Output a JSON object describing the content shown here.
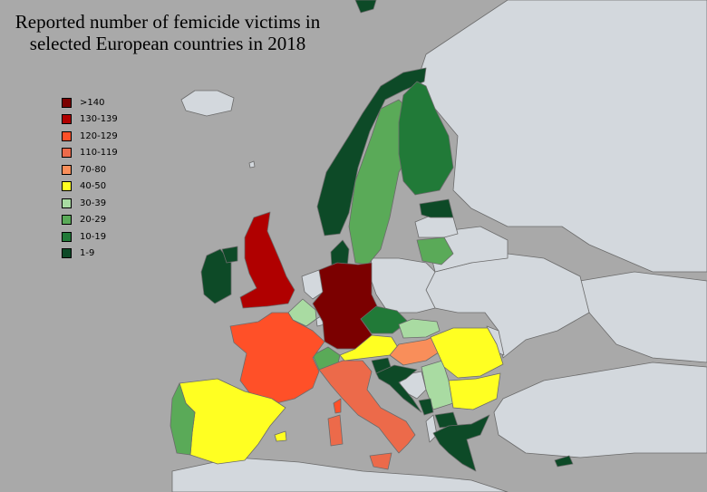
{
  "title": {
    "line1": "Reported number of femicide victims in",
    "line2": "selected European countries in 2018"
  },
  "colors": {
    "sea": "#a9a9a9",
    "land_no_data": "#d3d8dd",
    "border": "#6b6b6b"
  },
  "legend": [
    {
      "label": ">140",
      "color": "#7b0000"
    },
    {
      "label": "130-139",
      "color": "#b00000"
    },
    {
      "label": "120-129",
      "color": "#ff5028"
    },
    {
      "label": "110-119",
      "color": "#ec6a4a"
    },
    {
      "label": "70-80",
      "color": "#f98e5a"
    },
    {
      "label": "40-50",
      "color": "#ffff22"
    },
    {
      "label": "30-39",
      "color": "#a9dba2"
    },
    {
      "label": "20-29",
      "color": "#5aaa58"
    },
    {
      "label": "10-19",
      "color": "#217a38"
    },
    {
      "label": "1-9",
      "color": "#0d4a27"
    }
  ],
  "countries": [
    {
      "name": "Germany",
      "category": ">140"
    },
    {
      "name": "United Kingdom",
      "category": "130-139"
    },
    {
      "name": "France",
      "category": "120-129"
    },
    {
      "name": "Italy",
      "category": "110-119"
    },
    {
      "name": "Hungary",
      "category": "70-80"
    },
    {
      "name": "Spain",
      "category": "40-50"
    },
    {
      "name": "Romania",
      "category": "40-50"
    },
    {
      "name": "Austria",
      "category": "40-50"
    },
    {
      "name": "Bulgaria",
      "category": "40-50"
    },
    {
      "name": "Sweden",
      "category": "20-29"
    },
    {
      "name": "Portugal",
      "category": "20-29"
    },
    {
      "name": "Switzerland",
      "category": "20-29"
    },
    {
      "name": "Lithuania",
      "category": "20-29"
    },
    {
      "name": "Slovakia",
      "category": "30-39"
    },
    {
      "name": "Belgium",
      "category": "30-39"
    },
    {
      "name": "Serbia",
      "category": "30-39"
    },
    {
      "name": "Finland",
      "category": "10-19"
    },
    {
      "name": "Czechia",
      "category": "10-19"
    },
    {
      "name": "Norway",
      "category": "1-9"
    },
    {
      "name": "Ireland",
      "category": "1-9"
    },
    {
      "name": "Denmark",
      "category": "1-9"
    },
    {
      "name": "Estonia",
      "category": "1-9"
    },
    {
      "name": "Slovenia",
      "category": "1-9"
    },
    {
      "name": "Croatia",
      "category": "1-9"
    },
    {
      "name": "Greece",
      "category": "1-9"
    },
    {
      "name": "North Macedonia",
      "category": "1-9"
    },
    {
      "name": "Montenegro",
      "category": "1-9"
    },
    {
      "name": "Northern Ireland",
      "category": "1-9"
    },
    {
      "name": "Cyprus",
      "category": "1-9"
    },
    {
      "name": "Svalbard",
      "category": "1-9"
    },
    {
      "name": "Poland",
      "category": "no data"
    },
    {
      "name": "Iceland",
      "category": "no data"
    },
    {
      "name": "Netherlands",
      "category": "no data"
    },
    {
      "name": "Latvia",
      "category": "no data"
    },
    {
      "name": "Belarus",
      "category": "no data"
    },
    {
      "name": "Ukraine",
      "category": "no data"
    },
    {
      "name": "Russia",
      "category": "no data"
    },
    {
      "name": "Turkey",
      "category": "no data"
    },
    {
      "name": "Albania",
      "category": "no data"
    },
    {
      "name": "Bosnia and Herzegovina",
      "category": "no data"
    },
    {
      "name": "Moldova",
      "category": "no data"
    },
    {
      "name": "Luxembourg",
      "category": "no data"
    }
  ]
}
